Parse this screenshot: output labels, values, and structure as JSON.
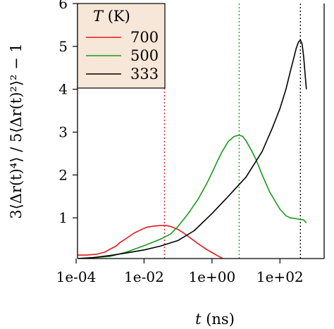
{
  "chart_data": {
    "type": "line",
    "xscale": "log10",
    "xlim": [
      0.00011,
      2000
    ],
    "ylim": [
      0.05,
      6
    ],
    "x_ticks": [
      {
        "value": 0.0001,
        "label": "1e-04"
      },
      {
        "value": 0.01,
        "label": "1e-02"
      },
      {
        "value": 1,
        "label": "1e+00"
      },
      {
        "value": 100,
        "label": "1e+02"
      }
    ],
    "y_ticks": [
      {
        "value": 1,
        "label": "1"
      },
      {
        "value": 2,
        "label": "2"
      },
      {
        "value": 3,
        "label": "3"
      },
      {
        "value": 4,
        "label": "4"
      },
      {
        "value": 5,
        "label": "5"
      },
      {
        "value": 6,
        "label": "6"
      }
    ],
    "xlabel": "t (ns)",
    "ylabel": "3⟨Δr(t)⁴⟩ / 5⟨Δr(t)²⟩² − 1",
    "legend": {
      "title": "T (K)",
      "placement": "top-left",
      "background": "#f7e7d8"
    },
    "vlines": [
      {
        "x": 0.04,
        "color": "#e31a1c"
      },
      {
        "x": 6.3,
        "color": "#1a9a1a"
      },
      {
        "x": 400,
        "color": "#000000"
      }
    ],
    "series": [
      {
        "name": "700",
        "color": "#e31a1c",
        "x": [
          0.00011,
          0.0002,
          0.0004,
          0.0007,
          0.001,
          0.0015,
          0.002,
          0.003,
          0.005,
          0.008,
          0.012,
          0.02,
          0.03,
          0.045,
          0.06,
          0.1,
          0.15,
          0.25,
          0.4,
          0.7,
          1.0,
          1.5,
          2.1
        ],
        "y": [
          0.13,
          0.13,
          0.15,
          0.2,
          0.27,
          0.34,
          0.43,
          0.52,
          0.64,
          0.72,
          0.78,
          0.81,
          0.82,
          0.82,
          0.8,
          0.73,
          0.64,
          0.51,
          0.39,
          0.26,
          0.19,
          0.11,
          0.05
        ]
      },
      {
        "name": "500",
        "color": "#1a9a1a",
        "x": [
          0.00011,
          0.0003,
          0.001,
          0.003,
          0.01,
          0.03,
          0.06,
          0.1,
          0.2,
          0.4,
          0.7,
          1.0,
          1.5,
          2.0,
          3.0,
          4.5,
          6.3,
          8.0,
          10,
          15,
          20,
          30,
          50,
          100,
          150,
          200,
          300,
          400,
          500,
          600
        ],
        "y": [
          0.05,
          0.07,
          0.1,
          0.2,
          0.35,
          0.5,
          0.62,
          0.8,
          1.1,
          1.45,
          1.8,
          2.05,
          2.35,
          2.55,
          2.78,
          2.9,
          2.93,
          2.9,
          2.8,
          2.55,
          2.35,
          2.0,
          1.6,
          1.2,
          1.05,
          1.0,
          0.98,
          0.96,
          0.95,
          0.88
        ]
      },
      {
        "name": "333",
        "color": "#000000",
        "x": [
          0.00011,
          0.0003,
          0.001,
          0.003,
          0.01,
          0.03,
          0.1,
          0.3,
          1.0,
          3.0,
          10,
          30,
          60,
          100,
          150,
          200,
          250,
          300,
          350,
          400,
          450,
          500,
          550,
          600
        ],
        "y": [
          0.05,
          0.07,
          0.12,
          0.18,
          0.25,
          0.34,
          0.47,
          0.7,
          1.1,
          1.5,
          1.95,
          2.55,
          3.1,
          3.55,
          4.0,
          4.4,
          4.7,
          4.95,
          5.1,
          5.15,
          5.05,
          4.75,
          4.35,
          4.0
        ]
      }
    ]
  }
}
